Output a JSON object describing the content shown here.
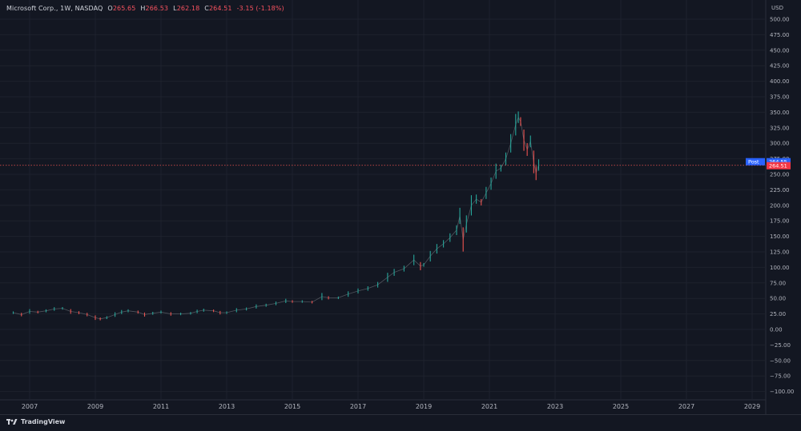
{
  "header": {
    "symbol": "Microsoft Corp., 1W, NASDAQ",
    "open_label": "O",
    "open": "265.65",
    "high_label": "H",
    "high": "266.53",
    "low_label": "L",
    "low": "262.18",
    "close_label": "C",
    "close": "264.51",
    "change": "-3.15 (-1.18%)"
  },
  "axis": {
    "currency": "USD",
    "y_ticks": [
      "500.00",
      "475.00",
      "450.00",
      "425.00",
      "400.00",
      "375.00",
      "350.00",
      "325.00",
      "300.00",
      "275.00",
      "250.00",
      "225.00",
      "200.00",
      "175.00",
      "150.00",
      "125.00",
      "100.00",
      "75.00",
      "50.00",
      "25.00",
      "0.00",
      "−25.00",
      "−50.00",
      "−75.00",
      "−100.00"
    ],
    "x_ticks": [
      "2007",
      "2009",
      "2011",
      "2013",
      "2015",
      "2017",
      "2019",
      "2021",
      "2023",
      "2025",
      "2027",
      "2029"
    ]
  },
  "labels": {
    "post_label": "Post",
    "post_price": "264.55",
    "last_price": "264.51"
  },
  "footer": {
    "brand": "TradingView"
  },
  "colors": {
    "background": "#131722",
    "up": "#26a69a",
    "down": "#ef5350",
    "grid": "#1e222d",
    "post_badge": "#2962ff",
    "price_badge": "#f23645"
  },
  "chart_data": {
    "type": "line",
    "title": "Microsoft Corp., 1W, NASDAQ",
    "ylabel": "USD",
    "ylim": [
      -100,
      510
    ],
    "xlim": [
      2006.5,
      2029.2
    ],
    "scale": "linear",
    "grid": true,
    "series": [
      {
        "values": [
          [
            2006.5,
            27
          ],
          [
            2006.75,
            24
          ],
          [
            2007.0,
            29
          ],
          [
            2007.25,
            28
          ],
          [
            2007.5,
            30
          ],
          [
            2007.75,
            33
          ],
          [
            2008.0,
            34
          ],
          [
            2008.25,
            29
          ],
          [
            2008.5,
            27
          ],
          [
            2008.75,
            24
          ],
          [
            2009.0,
            19
          ],
          [
            2009.15,
            17
          ],
          [
            2009.35,
            19
          ],
          [
            2009.6,
            24
          ],
          [
            2009.8,
            28
          ],
          [
            2010.0,
            30
          ],
          [
            2010.3,
            28
          ],
          [
            2010.5,
            24
          ],
          [
            2010.75,
            26
          ],
          [
            2011.0,
            28
          ],
          [
            2011.3,
            25
          ],
          [
            2011.6,
            25
          ],
          [
            2011.9,
            26
          ],
          [
            2012.1,
            29
          ],
          [
            2012.3,
            31
          ],
          [
            2012.6,
            30
          ],
          [
            2012.8,
            27
          ],
          [
            2013.0,
            27
          ],
          [
            2013.3,
            31
          ],
          [
            2013.6,
            33
          ],
          [
            2013.9,
            37
          ],
          [
            2014.2,
            39
          ],
          [
            2014.5,
            42
          ],
          [
            2014.8,
            46
          ],
          [
            2015.0,
            45
          ],
          [
            2015.3,
            45
          ],
          [
            2015.6,
            44
          ],
          [
            2015.9,
            53
          ],
          [
            2016.1,
            51
          ],
          [
            2016.4,
            51
          ],
          [
            2016.7,
            57
          ],
          [
            2017.0,
            62
          ],
          [
            2017.3,
            66
          ],
          [
            2017.6,
            72
          ],
          [
            2017.9,
            84
          ],
          [
            2018.1,
            92
          ],
          [
            2018.4,
            98
          ],
          [
            2018.7,
            112
          ],
          [
            2018.9,
            102
          ],
          [
            2019.0,
            104
          ],
          [
            2019.2,
            118
          ],
          [
            2019.4,
            130
          ],
          [
            2019.6,
            138
          ],
          [
            2019.8,
            148
          ],
          [
            2020.0,
            160
          ],
          [
            2020.1,
            183
          ],
          [
            2020.2,
            145
          ],
          [
            2020.3,
            170
          ],
          [
            2020.45,
            200
          ],
          [
            2020.6,
            210
          ],
          [
            2020.75,
            205
          ],
          [
            2020.9,
            220
          ],
          [
            2021.05,
            235
          ],
          [
            2021.2,
            255
          ],
          [
            2021.35,
            260
          ],
          [
            2021.5,
            275
          ],
          [
            2021.65,
            300
          ],
          [
            2021.8,
            330
          ],
          [
            2021.88,
            342
          ],
          [
            2021.95,
            335
          ],
          [
            2022.05,
            305
          ],
          [
            2022.15,
            290
          ],
          [
            2022.25,
            303
          ],
          [
            2022.35,
            270
          ],
          [
            2022.42,
            252
          ],
          [
            2022.5,
            265
          ]
        ]
      }
    ],
    "last_close": 264.51,
    "post_price": 264.55
  }
}
